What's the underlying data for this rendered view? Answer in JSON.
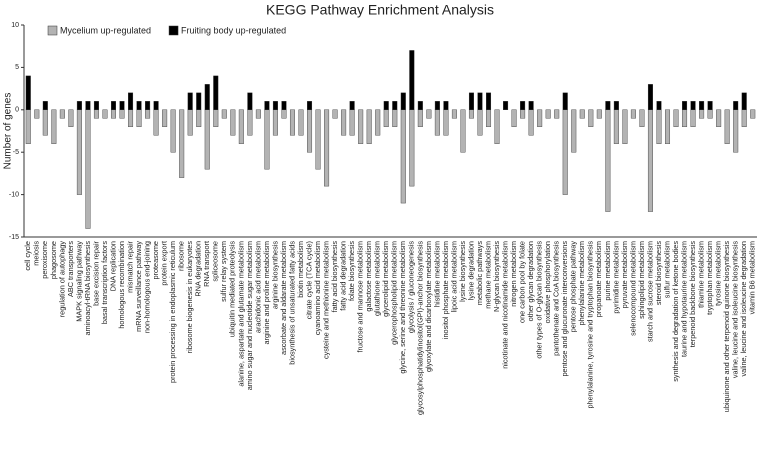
{
  "chart_data": {
    "type": "bar",
    "title": "KEGG Pathway Enrichment Analysis",
    "y_label": "Number of genes",
    "categories": [
      "cell cycle",
      "meiosis",
      "peroxisome",
      "phagosome",
      "regulation of autophagy",
      "ABC transporters",
      "MAPK signaling pathway",
      "aminoacyl-tRNA biosynthesis",
      "base excision repair",
      "basal transcription factors",
      "DNA replication",
      "homologous recombination",
      "mismatch repair",
      "mRNA surveillance pathway",
      "non-homologous end-joining",
      "proteasome",
      "protein export",
      "protein processing in endoplasmic reticulum",
      "ribosome",
      "ribosome biogenesis in eukaryotes",
      "RNA degradation",
      "RNA transport",
      "spliceosome",
      "sulfur relay system",
      "ubiquitin mediated proteolysis",
      "alanine, aspartate and glutamate metabolism",
      "amino sugar and nucleotide sugar metabolism",
      "arachidonic acid metabolism",
      "arginine and proline metabolism",
      "arginine biosynthesis",
      "ascorbate and aldarate metabolism",
      "biosynthesis of unsaturated fatty acids",
      "biotin metabolism",
      "citrate cycle (TCA cycle)",
      "cyanoamino acid metabolism",
      "cysteine and methionine metabolism",
      "fatty acid biosynthesis",
      "fatty acid degradation",
      "folate biosynthesis",
      "fructose and mannose metabolism",
      "galactose metabolism",
      "glutathione metabolism",
      "glycerolipid metabolism",
      "glycerophospholipid metabolism",
      "glycine, serine and threonine metabolism",
      "glycolysis / gluconeogenesis",
      "glycosylphosphatidylinositol(GPI)-anchor biosynthesis",
      "glyoxylate and dicarboxylate metabolism",
      "histidine metabolism",
      "inositol phosphate metabolism",
      "lipoic acid metabolism",
      "lysine biosynthesis",
      "lysine degradation",
      "metabolic pathways",
      "methane metabolism",
      "N-glycan biosynthesis",
      "nicotinate and nicotinamide metabolism",
      "nitrogen metabolism",
      "one carbon pool by folate",
      "other glycan degradation",
      "other types of O-glycan biosynthesis",
      "oxidative phosphorylation",
      "pantothenate and CoA biosynthesis",
      "pentose and glucuronate interconversions",
      "pentose phosphate pathway",
      "phenylalanine metabolism",
      "phenylalanine, tyrosine and tryptophan biosynthesis",
      "propanoate metabolism",
      "purine metabolism",
      "pyrimidine metabolism",
      "pyruvate metabolism",
      "selenocompound metabolism",
      "sphingolipid metabolism",
      "starch and sucrose metabolism",
      "steroid biosynthesis",
      "sulfur metabolism",
      "synthesis and degradation of ketone bodies",
      "taurine and hypotaurine metabolism",
      "terpenoid backbone biosynthesis",
      "thiamine metabolism",
      "tryptophan metabolism",
      "tyrosine metabolism",
      "ubiquinone and other terpenoid quinone biosynthesis",
      "valine, leucine and isoleucine biosynthesis",
      "valine, leucine and isoleucine degradation",
      "vitamin B6 metabolism"
    ],
    "series": [
      {
        "name": "Mycelium up-regulated",
        "color": "#b3b3b3",
        "values": [
          -4,
          -1,
          -3,
          -4,
          -1,
          -2,
          -10,
          -14,
          -1,
          -1,
          -1,
          -1,
          -2,
          -2,
          -1,
          -3,
          -2,
          -5,
          -8,
          -3,
          -2,
          -7,
          -2,
          -1,
          -3,
          -4,
          -3,
          -1,
          -7,
          -3,
          -1,
          -3,
          -3,
          -5,
          -7,
          -9,
          -1,
          -3,
          -3,
          -4,
          -4,
          -3,
          -2,
          -2,
          -11,
          -9,
          -2,
          -1,
          -3,
          -3,
          -1,
          -5,
          -1,
          -3,
          -2,
          -4,
          0,
          -2,
          -1,
          -3,
          -2,
          -1,
          -1,
          -10,
          -5,
          -1,
          -2,
          -1,
          -12,
          -4,
          -4,
          -1,
          -2,
          -12,
          -4,
          -4,
          -2,
          -2,
          -2,
          -1,
          -1,
          -2,
          -4,
          -5,
          -2,
          -1
        ]
      },
      {
        "name": "Fruiting body up-regulated",
        "color": "#000000",
        "values": [
          4,
          0,
          1,
          0,
          0,
          0,
          1,
          1,
          1,
          0,
          1,
          1,
          2,
          1,
          1,
          1,
          0,
          0,
          0,
          2,
          2,
          3,
          4,
          0,
          0,
          0,
          2,
          0,
          1,
          1,
          1,
          0,
          0,
          1,
          0,
          0,
          0,
          0,
          1,
          0,
          0,
          0,
          1,
          1,
          2,
          7,
          1,
          0,
          1,
          1,
          0,
          0,
          2,
          2,
          2,
          0,
          1,
          0,
          1,
          1,
          0,
          0,
          0,
          2,
          0,
          0,
          0,
          0,
          1,
          1,
          0,
          0,
          0,
          3,
          1,
          0,
          0,
          1,
          1,
          1,
          1,
          0,
          0,
          1,
          2,
          0
        ]
      }
    ],
    "ylim": [
      -15,
      10
    ],
    "yticks": [
      10,
      5,
      0,
      -5,
      -10,
      -15
    ]
  }
}
